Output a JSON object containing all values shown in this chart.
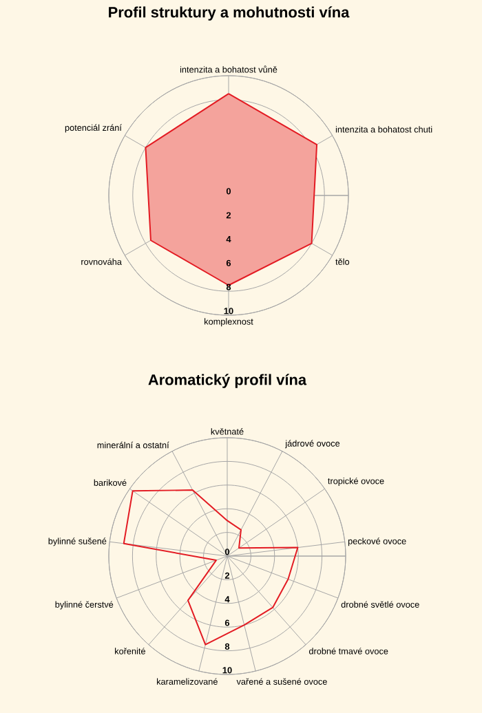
{
  "chart_data": [
    {
      "type": "radar",
      "title": "Profil struktury a mohutnosti vína",
      "categories": [
        "intenzita a bohatost vůně",
        "intenzita a bohatost chuti",
        "tělo",
        "komplexnost",
        "rovnováha",
        "potenciál zrání"
      ],
      "series": [
        {
          "color": "#e31b23",
          "values": [
            8.5,
            8.5,
            8,
            7.5,
            7.5,
            8
          ]
        }
      ],
      "ylim": [
        0,
        10
      ],
      "yticks": [
        0,
        2,
        4,
        6,
        8,
        10
      ],
      "grid": true
    },
    {
      "type": "radar",
      "title": "Aromatický profil vína",
      "categories": [
        "květnaté",
        "jádrové ovoce",
        "tropické ovoce",
        "peckové ovoce",
        "drobné světlé ovoce",
        "drobné tmavé ovoce",
        "vařené a sušené ovoce",
        "karamelizované",
        "kořenité",
        "bylinné čerstvé",
        "bylinné sušené",
        "barikové",
        "minerální a ostatní"
      ],
      "series": [
        {
          "color": "#e31b23",
          "values": [
            3,
            2.5,
            1.2,
            6,
            5.5,
            5.8,
            6,
            7.7,
            5,
            1,
            8.8,
            9.7,
            6.3
          ]
        }
      ],
      "ylim": [
        0,
        10
      ],
      "yticks": [
        0,
        2,
        4,
        6,
        8,
        10
      ],
      "grid": true
    }
  ]
}
